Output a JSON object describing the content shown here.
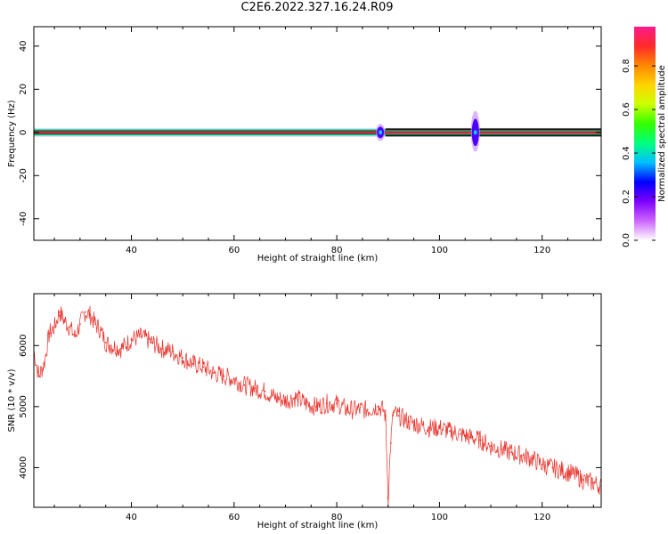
{
  "title": "C2E6.2022.327.16.24.R09",
  "colors": {
    "line": "#e8312a",
    "spectral_center": "#e8124a",
    "spectral_band": "#1a1a1a",
    "spectral_halo": "#9b30ff"
  },
  "chart_data": [
    {
      "type": "heatmap",
      "xlabel": "Height of straight line (km)",
      "ylabel": "Frequency (Hz)",
      "xlim": [
        21,
        131.5
      ],
      "ylim": [
        -50,
        49
      ],
      "xticks": [
        40,
        60,
        80,
        100,
        120
      ],
      "yticks": [
        40,
        20,
        0,
        -20,
        -40
      ],
      "xtick_labels": [
        "40",
        "60",
        "80",
        "100",
        "120"
      ],
      "ytick_labels": [
        "40",
        "20",
        "0",
        "-20",
        "-40"
      ],
      "colorbar": {
        "label": "Normalized spectral amplitude",
        "range": [
          0,
          1
        ],
        "ticks": [
          "0.0",
          "0.2",
          "0.4",
          "0.6",
          "0.8"
        ],
        "colormap": [
          "#ffffff",
          "#cc66ff",
          "#7f00ff",
          "#0000ff",
          "#00bfff",
          "#00ff80",
          "#33ff00",
          "#ccff00",
          "#ffd400",
          "#ff8800",
          "#ff2a2a",
          "#ff1a8c"
        ]
      },
      "features": [
        {
          "description": "dominant line",
          "frequency": 0,
          "x_range": [
            21,
            131.5
          ],
          "amplitude": 0.9
        },
        {
          "description": "spread",
          "x": 88.5,
          "frequency_range": [
            -4,
            4
          ],
          "amplitude": 0.3
        },
        {
          "description": "spread",
          "x": 107,
          "frequency_range": [
            -9,
            10
          ],
          "amplitude": 0.2
        }
      ]
    },
    {
      "type": "line",
      "xlabel": "Height of straight line (km)",
      "ylabel": "SNR (10 * v/v)",
      "xlim": [
        21,
        131.5
      ],
      "ylim": [
        3350,
        6850
      ],
      "xticks": [
        40,
        60,
        80,
        100,
        120
      ],
      "yticks": [
        4000,
        5000,
        6000
      ],
      "xtick_labels": [
        "40",
        "60",
        "80",
        "100",
        "120"
      ],
      "ytick_labels": [
        "4000",
        "5000",
        "6000"
      ],
      "series": [
        {
          "x": [
            21.0,
            22.0,
            23.0,
            24.0,
            25.0,
            26.0,
            27.0,
            28.0,
            29.0,
            30.0,
            31.0,
            32.0,
            33.0,
            34.0,
            35.0,
            36.0,
            38.0,
            40.0,
            42.0,
            44.0,
            46.0,
            48.0,
            50.0,
            52.0,
            54.0,
            56.0,
            58.0,
            60.0,
            62.0,
            64.0,
            66.0,
            68.0,
            70.0,
            72.0,
            74.0,
            76.0,
            78.0,
            80.0,
            82.0,
            84.0,
            86.0,
            88.0,
            89.0,
            89.5,
            90.0,
            90.5,
            91.0,
            92.0,
            94.0,
            96.0,
            98.0,
            100.0,
            102.0,
            104.0,
            106.0,
            108.0,
            110.0,
            112.0,
            114.0,
            116.0,
            118.0,
            120.0,
            122.0,
            124.0,
            126.0,
            128.0,
            130.0,
            131.5
          ],
          "y": [
            5900,
            5500,
            5700,
            6200,
            6300,
            6550,
            6400,
            6300,
            6150,
            6350,
            6550,
            6500,
            6350,
            6250,
            6050,
            6000,
            5950,
            6100,
            6150,
            6050,
            5950,
            5900,
            5800,
            5700,
            5650,
            5550,
            5500,
            5450,
            5350,
            5300,
            5250,
            5150,
            5100,
            5150,
            5050,
            5000,
            5050,
            5050,
            4950,
            4950,
            4950,
            5000,
            4950,
            4850,
            3500,
            4400,
            4900,
            4850,
            4750,
            4700,
            4650,
            4650,
            4600,
            4550,
            4500,
            4450,
            4350,
            4300,
            4250,
            4200,
            4150,
            4050,
            4000,
            3950,
            3900,
            3800,
            3750,
            3700
          ]
        }
      ]
    }
  ]
}
